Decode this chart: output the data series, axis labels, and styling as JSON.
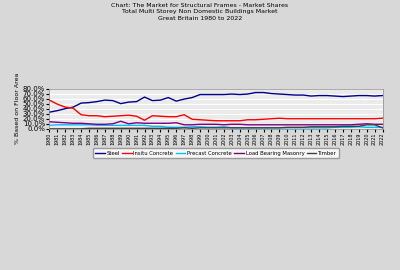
{
  "title_line1": "Chart: The Market for Structural Frames - Market Shares",
  "title_line2": "Total Multi Storey Non Domestic Buildings Market",
  "title_line3": "Great Britain 1980 to 2022",
  "ylabel": "% Based on Floor Area",
  "years": [
    1980,
    1981,
    1982,
    1983,
    1984,
    1985,
    1986,
    1987,
    1988,
    1989,
    1990,
    1991,
    1992,
    1993,
    1994,
    1995,
    1996,
    1997,
    1998,
    1999,
    2000,
    2001,
    2002,
    2003,
    2004,
    2005,
    2006,
    2007,
    2008,
    2009,
    2010,
    2011,
    2012,
    2013,
    2014,
    2015,
    2016,
    2017,
    2018,
    2019,
    2020,
    2021,
    2022
  ],
  "steel": [
    33,
    36,
    40,
    43,
    51,
    52,
    54,
    57,
    56,
    50,
    53,
    54,
    63,
    56,
    57,
    62,
    55,
    59,
    62,
    68,
    68,
    68,
    68,
    69,
    68,
    69,
    72,
    72,
    70,
    69,
    68,
    67,
    67,
    65,
    66,
    66,
    65,
    64,
    65,
    66,
    66,
    65,
    66
  ],
  "insitu_concrete": [
    57,
    49,
    43,
    41,
    28,
    26,
    26,
    24,
    25,
    26,
    27,
    25,
    17,
    26,
    25,
    24,
    24,
    28,
    19,
    18,
    17,
    16,
    16,
    16,
    16,
    18,
    18,
    19,
    20,
    21,
    20,
    20,
    20,
    20,
    20,
    20,
    20,
    20,
    20,
    20,
    20,
    20,
    21
  ],
  "precast_concrete": [
    7,
    8,
    8,
    8,
    8,
    8,
    7,
    7,
    7,
    7,
    7,
    7,
    7,
    5,
    5,
    3,
    3,
    3,
    4,
    4,
    3,
    3,
    4,
    2,
    2,
    2,
    2,
    2,
    2,
    2,
    2,
    2,
    2,
    2,
    2,
    2,
    3,
    3,
    3,
    4,
    3,
    3,
    3
  ],
  "load_bearing_masonry": [
    14,
    13,
    12,
    11,
    11,
    10,
    9,
    9,
    10,
    15,
    10,
    12,
    11,
    11,
    11,
    11,
    12,
    8,
    8,
    9,
    9,
    9,
    8,
    9,
    9,
    8,
    8,
    8,
    8,
    8,
    8,
    8,
    8,
    8,
    8,
    8,
    8,
    8,
    8,
    9,
    10,
    9,
    9
  ],
  "timber": [
    0,
    0,
    0,
    0,
    0,
    1,
    1,
    1,
    1,
    1,
    1,
    1,
    1,
    1,
    1,
    1,
    1,
    2,
    1,
    2,
    2,
    2,
    2,
    2,
    2,
    2,
    2,
    2,
    2,
    2,
    3,
    3,
    3,
    4,
    4,
    4,
    4,
    5,
    5,
    5,
    8,
    8,
    2
  ],
  "steel_color": "#00008B",
  "insitu_color": "#FF0000",
  "precast_color": "#00BFFF",
  "masonry_color": "#800080",
  "timber_color": "#404040",
  "bg_color": "#D8D8D8",
  "plot_bg_color": "#EBEBEB",
  "ylim": [
    0,
    80
  ],
  "yticks": [
    0,
    10,
    20,
    30,
    40,
    50,
    60,
    70,
    80
  ],
  "legend_labels": [
    "Steel",
    "Insitu Concrete",
    "Precast Concrete",
    "Load Bearing Masonry",
    "Timber"
  ]
}
